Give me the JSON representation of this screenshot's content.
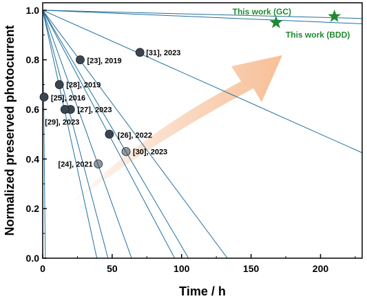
{
  "chart_data": {
    "type": "scatter",
    "xlabel": "Time / h",
    "ylabel": "Normalized preserved photocurrent",
    "xlim": [
      0,
      230
    ],
    "ylim": [
      0,
      1.03
    ],
    "xticks": [
      0,
      50,
      100,
      150,
      200
    ],
    "yticks": [
      0.0,
      0.2,
      0.4,
      0.6,
      0.8,
      1.0
    ],
    "x_tick_labels": [
      "0",
      "50",
      "100",
      "150",
      "200"
    ],
    "y_tick_labels": [
      "0.0",
      "0.2",
      "0.4",
      "0.6",
      "0.8",
      "1.0"
    ],
    "grid": false,
    "accent_colors": {
      "line": "#1f6f9e",
      "marker": "#3b4450",
      "star": "#1f8a2e",
      "arrow": "#f4a46c"
    },
    "literature_points": [
      {
        "label": "[31], 2023",
        "x": 70,
        "y": 0.83,
        "faded": false
      },
      {
        "label": "[23], 2019",
        "x": 27,
        "y": 0.8,
        "faded": false
      },
      {
        "label": "[28], 2019",
        "x": 12,
        "y": 0.7,
        "faded": false
      },
      {
        "label": "[25], 2016",
        "x": 1,
        "y": 0.65,
        "faded": false
      },
      {
        "label": "[27], 2023",
        "x": 20,
        "y": 0.6,
        "faded": false
      },
      {
        "label": "[29], 2023",
        "x": 16,
        "y": 0.6,
        "faded": false
      },
      {
        "label": "[26], 2022",
        "x": 48,
        "y": 0.5,
        "faded": false
      },
      {
        "label": "[30], 2023",
        "x": 60,
        "y": 0.43,
        "faded": true
      },
      {
        "label": "[24], 2021",
        "x": 40,
        "y": 0.38,
        "faded": true
      }
    ],
    "this_work": [
      {
        "label": "This work (GC)",
        "x": 210,
        "y": 0.975
      },
      {
        "label": "This work (BDD)",
        "x": 168,
        "y": 0.95
      }
    ],
    "trend_lines_x_intercept": [
      1.9,
      39,
      47,
      64,
      95,
      105,
      133,
      400,
      6900,
      4200
    ]
  }
}
